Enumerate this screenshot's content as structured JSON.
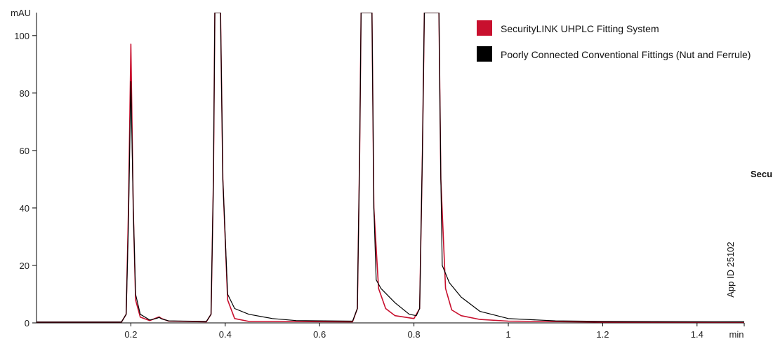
{
  "chart_data": {
    "type": "line",
    "ylabel": "mAU",
    "xlabel": "min",
    "xlim": [
      0,
      1.5
    ],
    "ylim": [
      0,
      108
    ],
    "x_ticks": [
      "0.2",
      "0.4",
      "0.6",
      "0.8",
      "1",
      "1.2",
      "1.4"
    ],
    "y_ticks": [
      "0",
      "20",
      "40",
      "60",
      "80",
      "100"
    ],
    "grid": false,
    "legend_position": "top-right",
    "annotations": [
      "App ID 25102",
      "Secu"
    ],
    "series": [
      {
        "name": "SecurityLINK UHPLC Fitting System",
        "color": "#c8102e",
        "points": [
          [
            0,
            0.3
          ],
          [
            0.18,
            0.3
          ],
          [
            0.19,
            3
          ],
          [
            0.195,
            40
          ],
          [
            0.2,
            97
          ],
          [
            0.205,
            40
          ],
          [
            0.21,
            8
          ],
          [
            0.22,
            2
          ],
          [
            0.24,
            0.8
          ],
          [
            0.255,
            1.8
          ],
          [
            0.26,
            2.1
          ],
          [
            0.265,
            1.5
          ],
          [
            0.28,
            0.6
          ],
          [
            0.36,
            0.4
          ],
          [
            0.37,
            3
          ],
          [
            0.375,
            50
          ],
          [
            0.378,
            108
          ],
          [
            0.39,
            108
          ],
          [
            0.395,
            50
          ],
          [
            0.405,
            8
          ],
          [
            0.42,
            1.5
          ],
          [
            0.45,
            0.5
          ],
          [
            0.67,
            0.4
          ],
          [
            0.68,
            5
          ],
          [
            0.685,
            60
          ],
          [
            0.688,
            108
          ],
          [
            0.711,
            108
          ],
          [
            0.715,
            40
          ],
          [
            0.725,
            12
          ],
          [
            0.74,
            5
          ],
          [
            0.76,
            2.5
          ],
          [
            0.8,
            1.5
          ],
          [
            0.812,
            5
          ],
          [
            0.818,
            60
          ],
          [
            0.822,
            108
          ],
          [
            0.853,
            108
          ],
          [
            0.857,
            50
          ],
          [
            0.867,
            12
          ],
          [
            0.88,
            4.5
          ],
          [
            0.9,
            2.5
          ],
          [
            0.94,
            1.2
          ],
          [
            1,
            0.6
          ],
          [
            1.2,
            0.3
          ],
          [
            1.5,
            0.3
          ]
        ]
      },
      {
        "name": "Poorly Connected Conventional Fittings (Nut and Ferrule)",
        "color": "#000000",
        "points": [
          [
            0,
            0.3
          ],
          [
            0.18,
            0.3
          ],
          [
            0.19,
            3
          ],
          [
            0.195,
            35
          ],
          [
            0.2,
            84
          ],
          [
            0.205,
            40
          ],
          [
            0.21,
            10
          ],
          [
            0.22,
            3
          ],
          [
            0.24,
            1
          ],
          [
            0.255,
            1.6
          ],
          [
            0.26,
            1.9
          ],
          [
            0.265,
            1.4
          ],
          [
            0.28,
            0.7
          ],
          [
            0.36,
            0.5
          ],
          [
            0.37,
            3
          ],
          [
            0.375,
            50
          ],
          [
            0.378,
            108
          ],
          [
            0.39,
            108
          ],
          [
            0.395,
            50
          ],
          [
            0.405,
            10
          ],
          [
            0.42,
            5
          ],
          [
            0.45,
            3
          ],
          [
            0.5,
            1.5
          ],
          [
            0.55,
            0.8
          ],
          [
            0.67,
            0.6
          ],
          [
            0.68,
            5
          ],
          [
            0.685,
            60
          ],
          [
            0.688,
            108
          ],
          [
            0.711,
            108
          ],
          [
            0.715,
            40
          ],
          [
            0.72,
            15
          ],
          [
            0.73,
            12
          ],
          [
            0.76,
            7
          ],
          [
            0.79,
            3
          ],
          [
            0.805,
            2.5
          ],
          [
            0.812,
            5
          ],
          [
            0.818,
            60
          ],
          [
            0.822,
            108
          ],
          [
            0.853,
            108
          ],
          [
            0.857,
            50
          ],
          [
            0.86,
            20
          ],
          [
            0.875,
            14
          ],
          [
            0.9,
            9
          ],
          [
            0.94,
            4
          ],
          [
            1,
            1.5
          ],
          [
            1.1,
            0.7
          ],
          [
            1.2,
            0.5
          ],
          [
            1.5,
            0.4
          ]
        ]
      }
    ]
  }
}
